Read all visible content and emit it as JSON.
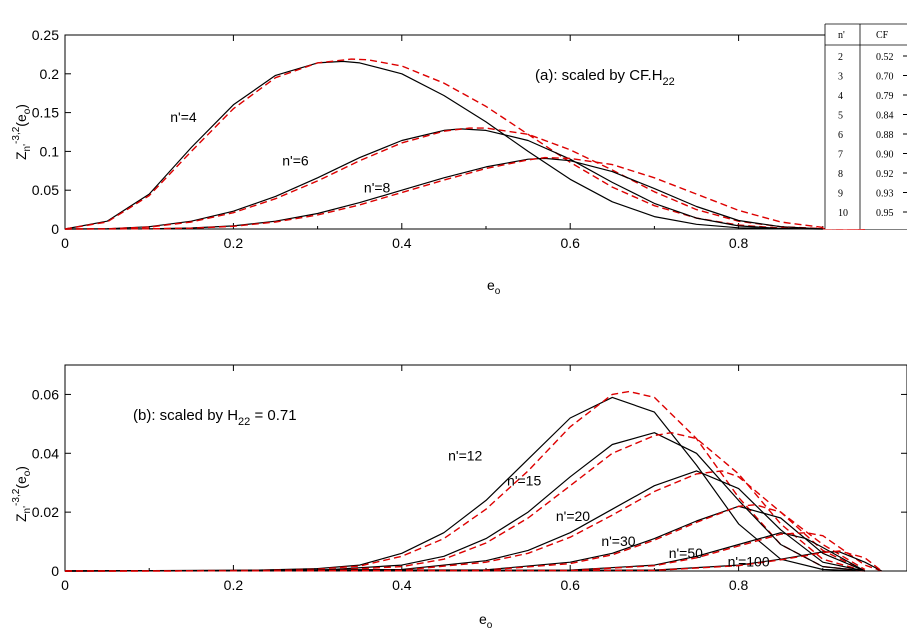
{
  "colors": {
    "exact": "#000000",
    "fit": "#dd0000",
    "axis": "#000000"
  },
  "chart_data": [
    {
      "type": "line",
      "panel": "a",
      "annotation": "(a): scaled by CF.H22",
      "annotation_main": "(a): scaled by CF.H",
      "annotation_sub": "22",
      "xlabel": "e",
      "xlabel_sub": "o",
      "ylabel": "Z",
      "ylabel_sub": "n'",
      "ylabel_sup": "-3,2",
      "ylabel_paren": "(e",
      "ylabel_paren_sub": "o",
      "ylabel_close": ")",
      "xlim": [
        0,
        1
      ],
      "ylim": [
        0,
        0.25
      ],
      "x_ticks": [
        0,
        0.2,
        0.4,
        0.6,
        0.8
      ],
      "x_tick_labels": [
        "0",
        "0.2",
        "0.4",
        "0.6",
        "0.8"
      ],
      "y_ticks": [
        0,
        0.05,
        0.1,
        0.15,
        0.2,
        0.25
      ],
      "y_tick_labels": [
        "0",
        "0.05",
        "0.1",
        "0.15",
        "0.2",
        "0.25"
      ],
      "curve_labels": [
        {
          "text": "n'=4",
          "x": 0.125,
          "y": 0.138
        },
        {
          "text": "n'=6",
          "x": 0.258,
          "y": 0.082
        },
        {
          "text": "n'=8",
          "x": 0.355,
          "y": 0.047
        }
      ],
      "series": [
        {
          "style": "solid",
          "x": [
            0,
            0.05,
            0.1,
            0.15,
            0.2,
            0.25,
            0.3,
            0.33,
            0.35,
            0.4,
            0.45,
            0.5,
            0.55,
            0.6,
            0.65,
            0.7,
            0.75,
            0.8,
            0.85,
            0.9
          ],
          "y": [
            0,
            0.01,
            0.045,
            0.105,
            0.16,
            0.198,
            0.214,
            0.216,
            0.214,
            0.2,
            0.172,
            0.138,
            0.1,
            0.064,
            0.035,
            0.016,
            0.006,
            0.0015,
            0.0002,
            0
          ]
        },
        {
          "style": "dashed",
          "x": [
            0,
            0.05,
            0.1,
            0.15,
            0.2,
            0.25,
            0.3,
            0.34,
            0.36,
            0.4,
            0.45,
            0.5,
            0.55,
            0.6,
            0.65,
            0.7,
            0.75,
            0.8,
            0.85,
            0.9,
            0.95
          ],
          "y": [
            0,
            0.009,
            0.043,
            0.1,
            0.155,
            0.195,
            0.214,
            0.219,
            0.218,
            0.21,
            0.188,
            0.158,
            0.122,
            0.086,
            0.054,
            0.03,
            0.014,
            0.005,
            0.0012,
            0.0002,
            0
          ]
        },
        {
          "style": "solid",
          "x": [
            0,
            0.05,
            0.1,
            0.15,
            0.2,
            0.25,
            0.3,
            0.35,
            0.4,
            0.45,
            0.47,
            0.5,
            0.55,
            0.6,
            0.65,
            0.7,
            0.75,
            0.8,
            0.85,
            0.9
          ],
          "y": [
            0,
            0.0003,
            0.003,
            0.01,
            0.023,
            0.042,
            0.066,
            0.092,
            0.114,
            0.127,
            0.129,
            0.127,
            0.114,
            0.09,
            0.06,
            0.033,
            0.014,
            0.004,
            0.0006,
            0
          ]
        },
        {
          "style": "dashed",
          "x": [
            0,
            0.05,
            0.1,
            0.15,
            0.2,
            0.25,
            0.3,
            0.35,
            0.4,
            0.45,
            0.48,
            0.5,
            0.55,
            0.6,
            0.65,
            0.7,
            0.75,
            0.8,
            0.85,
            0.9,
            0.95
          ],
          "y": [
            0,
            0.0002,
            0.0025,
            0.009,
            0.021,
            0.039,
            0.062,
            0.088,
            0.111,
            0.126,
            0.13,
            0.13,
            0.122,
            0.102,
            0.076,
            0.048,
            0.025,
            0.01,
            0.003,
            0.0005,
            0
          ]
        },
        {
          "style": "solid",
          "x": [
            0,
            0.1,
            0.15,
            0.2,
            0.25,
            0.3,
            0.35,
            0.4,
            0.45,
            0.5,
            0.55,
            0.57,
            0.6,
            0.65,
            0.7,
            0.75,
            0.8,
            0.85,
            0.9
          ],
          "y": [
            0,
            0.0003,
            0.0013,
            0.004,
            0.01,
            0.02,
            0.034,
            0.05,
            0.066,
            0.08,
            0.09,
            0.091,
            0.088,
            0.074,
            0.052,
            0.029,
            0.011,
            0.003,
            0
          ]
        },
        {
          "style": "dashed",
          "x": [
            0,
            0.1,
            0.15,
            0.2,
            0.25,
            0.3,
            0.35,
            0.4,
            0.45,
            0.5,
            0.55,
            0.57,
            0.6,
            0.65,
            0.7,
            0.75,
            0.8,
            0.85,
            0.9,
            0.95
          ],
          "y": [
            0,
            0.0002,
            0.001,
            0.0035,
            0.009,
            0.018,
            0.031,
            0.047,
            0.063,
            0.078,
            0.089,
            0.092,
            0.091,
            0.083,
            0.066,
            0.045,
            0.024,
            0.009,
            0.002,
            0
          ]
        }
      ],
      "table": {
        "headers": [
          "n'",
          "CF"
        ],
        "rows": [
          [
            "2",
            "0.52"
          ],
          [
            "3",
            "0.70"
          ],
          [
            "4",
            "0.79"
          ],
          [
            "5",
            "0.84"
          ],
          [
            "6",
            "0.88"
          ],
          [
            "7",
            "0.90"
          ],
          [
            "8",
            "0.92"
          ],
          [
            "9",
            "0.93"
          ],
          [
            "10",
            "0.95"
          ]
        ]
      }
    },
    {
      "type": "line",
      "panel": "b",
      "annotation": "(b): scaled by H22 = 0.71",
      "annotation_main": "(b): scaled by H",
      "annotation_sub": "22",
      "annotation_tail": " = 0.71",
      "xlabel": "e",
      "xlabel_sub": "o",
      "ylabel": "Z",
      "ylabel_sub": "n'",
      "ylabel_sup": "-3,2",
      "ylabel_paren": "(e",
      "ylabel_paren_sub": "o",
      "ylabel_close": ")",
      "xlim": [
        0,
        1
      ],
      "ylim": [
        0,
        0.07
      ],
      "x_ticks": [
        0,
        0.2,
        0.4,
        0.6,
        0.8
      ],
      "x_tick_labels": [
        "0",
        "0.2",
        "0.4",
        "0.6",
        "0.8"
      ],
      "y_ticks": [
        0,
        0.02,
        0.04,
        0.06
      ],
      "y_tick_labels": [
        "0",
        "0.02",
        "0.04",
        "0.06"
      ],
      "curve_labels": [
        {
          "text": "n'=12",
          "x": 0.455,
          "y": 0.0375
        },
        {
          "text": "n'=15",
          "x": 0.525,
          "y": 0.029
        },
        {
          "text": "n'=20",
          "x": 0.583,
          "y": 0.017
        },
        {
          "text": "n'=30",
          "x": 0.637,
          "y": 0.0085
        },
        {
          "text": "n'=50",
          "x": 0.717,
          "y": 0.0045
        },
        {
          "text": "n'=100",
          "x": 0.787,
          "y": 0.0015
        }
      ],
      "series": [
        {
          "style": "solid",
          "x": [
            0,
            0.2,
            0.3,
            0.35,
            0.4,
            0.45,
            0.5,
            0.55,
            0.6,
            0.65,
            0.7,
            0.75,
            0.8,
            0.85,
            0.9,
            0.95
          ],
          "y": [
            0,
            0.0001,
            0.0008,
            0.002,
            0.006,
            0.013,
            0.024,
            0.038,
            0.052,
            0.059,
            0.054,
            0.036,
            0.016,
            0.004,
            0.0005,
            0
          ]
        },
        {
          "style": "dashed",
          "x": [
            0,
            0.2,
            0.3,
            0.35,
            0.4,
            0.45,
            0.5,
            0.55,
            0.6,
            0.65,
            0.67,
            0.7,
            0.75,
            0.8,
            0.85,
            0.9,
            0.95
          ],
          "y": [
            0,
            0.0001,
            0.0006,
            0.0017,
            0.005,
            0.011,
            0.021,
            0.034,
            0.049,
            0.06,
            0.061,
            0.059,
            0.045,
            0.025,
            0.009,
            0.0015,
            0
          ]
        },
        {
          "style": "solid",
          "x": [
            0,
            0.3,
            0.4,
            0.45,
            0.5,
            0.55,
            0.6,
            0.65,
            0.7,
            0.75,
            0.8,
            0.85,
            0.9,
            0.95
          ],
          "y": [
            0,
            0.0002,
            0.002,
            0.005,
            0.011,
            0.02,
            0.032,
            0.043,
            0.047,
            0.04,
            0.024,
            0.009,
            0.0015,
            0
          ]
        },
        {
          "style": "dashed",
          "x": [
            0,
            0.3,
            0.4,
            0.45,
            0.5,
            0.55,
            0.6,
            0.65,
            0.7,
            0.72,
            0.75,
            0.8,
            0.85,
            0.9,
            0.95
          ],
          "y": [
            0,
            0.0001,
            0.0015,
            0.004,
            0.0095,
            0.018,
            0.029,
            0.04,
            0.046,
            0.047,
            0.045,
            0.033,
            0.016,
            0.004,
            0
          ]
        },
        {
          "style": "solid",
          "x": [
            0,
            0.4,
            0.5,
            0.55,
            0.6,
            0.65,
            0.7,
            0.75,
            0.8,
            0.85,
            0.9,
            0.95
          ],
          "y": [
            0,
            0.0005,
            0.0035,
            0.007,
            0.013,
            0.021,
            0.029,
            0.034,
            0.028,
            0.014,
            0.003,
            0
          ]
        },
        {
          "style": "dashed",
          "x": [
            0,
            0.4,
            0.5,
            0.55,
            0.6,
            0.65,
            0.7,
            0.75,
            0.78,
            0.8,
            0.85,
            0.9,
            0.95
          ],
          "y": [
            0,
            0.0003,
            0.003,
            0.006,
            0.0115,
            0.019,
            0.027,
            0.033,
            0.034,
            0.032,
            0.02,
            0.007,
            0
          ]
        },
        {
          "style": "solid",
          "x": [
            0,
            0.5,
            0.6,
            0.65,
            0.7,
            0.75,
            0.8,
            0.85,
            0.9,
            0.95
          ],
          "y": [
            0,
            0.0004,
            0.003,
            0.006,
            0.011,
            0.017,
            0.022,
            0.018,
            0.006,
            0
          ]
        },
        {
          "style": "dashed",
          "x": [
            0,
            0.5,
            0.6,
            0.65,
            0.7,
            0.75,
            0.8,
            0.82,
            0.85,
            0.9,
            0.95
          ],
          "y": [
            0,
            0.0003,
            0.0025,
            0.0055,
            0.0105,
            0.0165,
            0.022,
            0.0225,
            0.02,
            0.009,
            0.0005
          ]
        },
        {
          "style": "solid",
          "x": [
            0,
            0.6,
            0.7,
            0.75,
            0.8,
            0.85,
            0.88,
            0.9,
            0.95
          ],
          "y": [
            0,
            0.0003,
            0.002,
            0.005,
            0.009,
            0.013,
            0.011,
            0.008,
            0
          ]
        },
        {
          "style": "dashed",
          "x": [
            0,
            0.6,
            0.7,
            0.75,
            0.8,
            0.85,
            0.88,
            0.9,
            0.95,
            0.97
          ],
          "y": [
            0,
            0.0002,
            0.0018,
            0.0045,
            0.0085,
            0.0125,
            0.013,
            0.012,
            0.002,
            0
          ]
        },
        {
          "style": "solid",
          "x": [
            0,
            0.7,
            0.8,
            0.85,
            0.88,
            0.9,
            0.92,
            0.95,
            0.97
          ],
          "y": [
            0,
            0.0003,
            0.002,
            0.004,
            0.0055,
            0.0065,
            0.0065,
            0.003,
            0
          ]
        },
        {
          "style": "dashed",
          "x": [
            0,
            0.7,
            0.8,
            0.85,
            0.88,
            0.9,
            0.92,
            0.95,
            0.97
          ],
          "y": [
            0,
            0.0002,
            0.0018,
            0.0038,
            0.0052,
            0.0063,
            0.0068,
            0.0045,
            0
          ]
        }
      ]
    }
  ]
}
